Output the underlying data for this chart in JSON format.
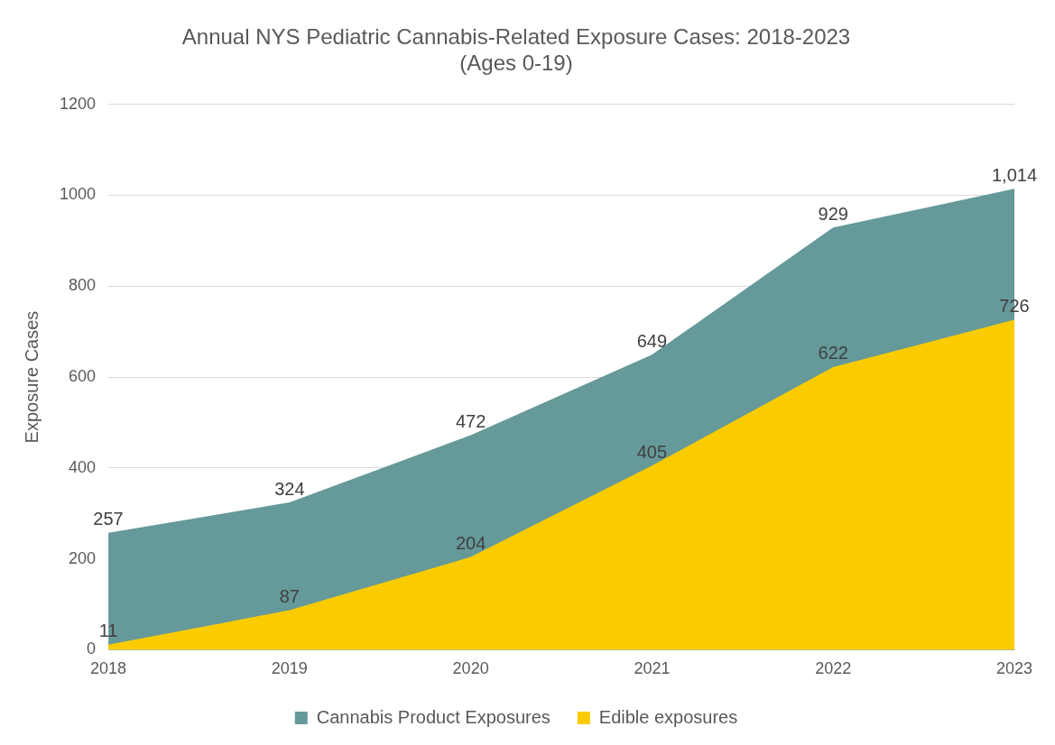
{
  "chart_data": {
    "type": "area",
    "title": "Annual NYS Pediatric Cannabis-Related Exposure Cases: 2018-2023",
    "subtitle": "(Ages 0-19)",
    "ylabel": "Exposure Cases",
    "categories": [
      "2018",
      "2019",
      "2020",
      "2021",
      "2022",
      "2023"
    ],
    "series": [
      {
        "name": "Cannabis Product Exposures",
        "color": "#669999",
        "values": [
          257,
          324,
          472,
          649,
          929,
          1014
        ],
        "value_labels": [
          "257",
          "324",
          "472",
          "649",
          "929",
          "1,014"
        ]
      },
      {
        "name": "Edible exposures",
        "color": "#facc00",
        "values": [
          11,
          87,
          204,
          405,
          622,
          726
        ],
        "value_labels": [
          "11",
          "87",
          "204",
          "405",
          "622",
          "726"
        ]
      }
    ],
    "ylim": [
      0,
      1200
    ],
    "yticks": [
      0,
      200,
      400,
      600,
      800,
      1000,
      1200
    ],
    "grid": "y",
    "legend": "bottom"
  }
}
